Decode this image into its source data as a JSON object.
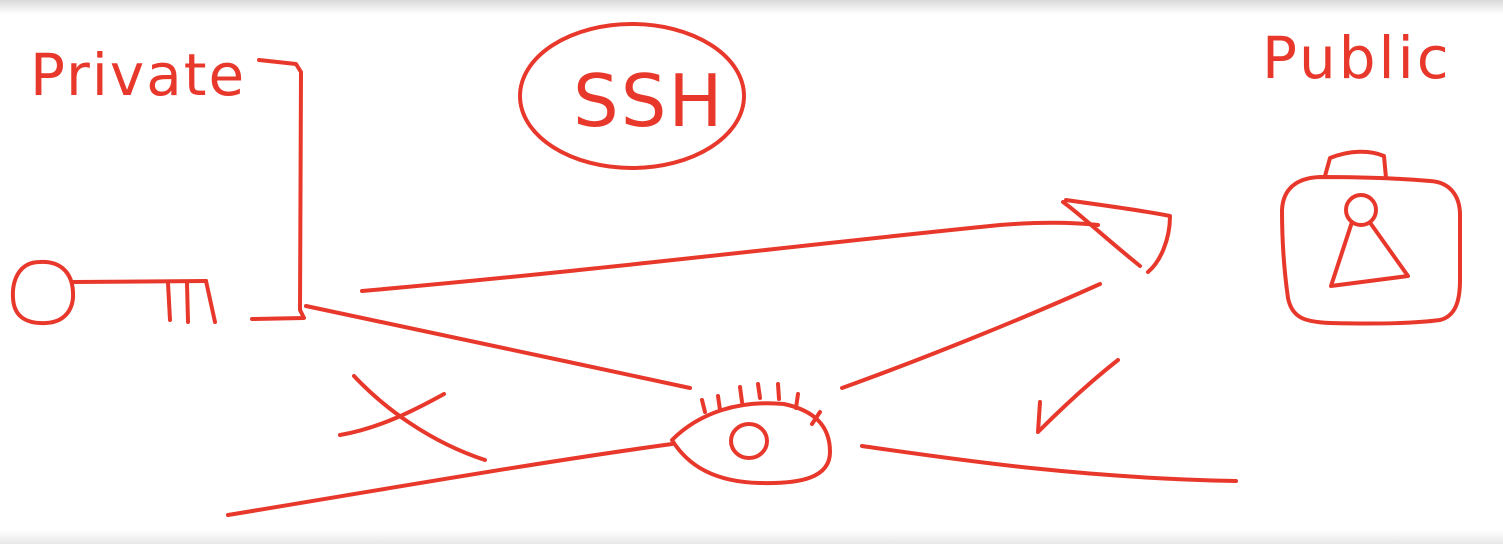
{
  "ink_color": "#e8382c",
  "labels": {
    "private": "Private",
    "public": "Public",
    "protocol": "SSH"
  },
  "icons": {
    "private_key": "key-icon",
    "public_lock": "padlock-icon",
    "observer": "eye-icon",
    "blocked": "cross-icon",
    "allowed": "checkmark-icon"
  }
}
